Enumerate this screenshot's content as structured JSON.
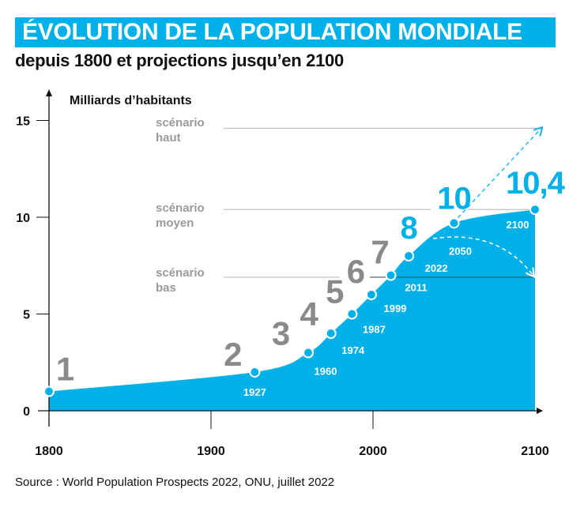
{
  "title": "ÉVOLUTION DE LA POPULATION MONDIALE",
  "subtitle": "depuis 1800 et projections jusqu’en 2100",
  "source": "Source : World Population Prospects 2022, ONU, juillet 2022",
  "colors": {
    "accent": "#00b0e8",
    "milestone_gray": "#8a8a8a",
    "scenario_gray": "#9a9a9a"
  },
  "chart_data": {
    "type": "area",
    "ylabel": "Milliards d’habitants",
    "xlim": [
      1800,
      2100
    ],
    "ylim": [
      0,
      15
    ],
    "xticks": [
      "1800",
      "1900",
      "2000",
      "2100"
    ],
    "yticks": [
      "0",
      "5",
      "10",
      "15"
    ],
    "grid": false,
    "points": [
      {
        "year": 1800,
        "value": 1,
        "label": "1",
        "year_label": ""
      },
      {
        "year": 1927,
        "value": 2,
        "label": "2",
        "year_label": "1927"
      },
      {
        "year": 1960,
        "value": 3,
        "label": "3",
        "year_label": "1960"
      },
      {
        "year": 1974,
        "value": 4,
        "label": "4",
        "year_label": "1974"
      },
      {
        "year": 1987,
        "value": 5,
        "label": "5",
        "year_label": "1987"
      },
      {
        "year": 1999,
        "value": 6,
        "label": "6",
        "year_label": "1999"
      },
      {
        "year": 2011,
        "value": 7,
        "label": "7",
        "year_label": "2011"
      },
      {
        "year": 2022,
        "value": 8,
        "label": "8",
        "year_label": "2022"
      },
      {
        "year": 2050,
        "value": 9.7,
        "label": "10",
        "year_label": "2050"
      },
      {
        "year": 2100,
        "value": 10.4,
        "label": "10,4",
        "year_label": "2100"
      }
    ],
    "scenarios": [
      {
        "name": "scénario haut",
        "line1": "scénario",
        "line2": "haut",
        "value_2100": 14.6
      },
      {
        "name": "scénario moyen",
        "line1": "scénario",
        "line2": "moyen",
        "value_2100": 10.4
      },
      {
        "name": "scénario bas",
        "line1": "scénario",
        "line2": "bas",
        "value_2100": 6.9
      }
    ]
  }
}
